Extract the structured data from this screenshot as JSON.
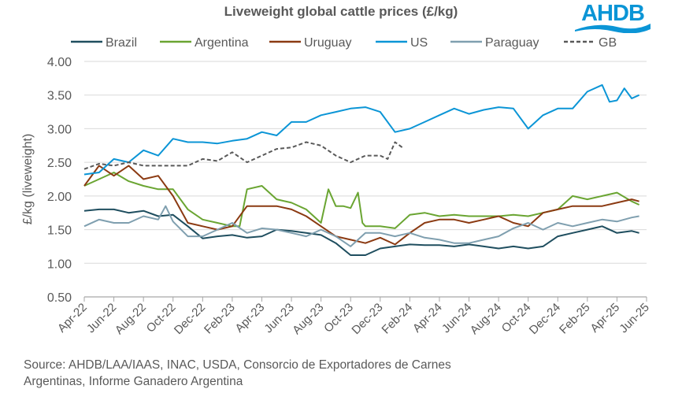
{
  "chart_data": {
    "type": "line",
    "title": "Liveweight global cattle prices (£/kg)",
    "ylabel": "£/kg (liveweight)",
    "xlabel": "",
    "ylim": [
      0.5,
      4.0
    ],
    "yticks": [
      "0.50",
      "1.00",
      "1.50",
      "2.00",
      "2.50",
      "3.00",
      "3.50",
      "4.00"
    ],
    "x_unit": "months since Apr-22",
    "xlim": [
      0,
      38
    ],
    "xticks": [
      "Apr-22",
      "Jun-22",
      "Aug-22",
      "Oct-22",
      "Dec-22",
      "Feb-23",
      "Apr-23",
      "Jun-23",
      "Aug-23",
      "Oct-23",
      "Dec-23",
      "Feb-24",
      "Apr-24",
      "Jun-24",
      "Aug-24",
      "Oct-24",
      "Dec-24",
      "Feb-25",
      "Apr-25",
      "Jun-25"
    ],
    "grid": true,
    "legend": "top",
    "series": [
      {
        "name": "Brazil",
        "color": "#1f4e5f",
        "dash": false,
        "x": [
          0,
          1,
          2,
          3,
          4,
          5,
          6,
          7,
          8,
          9,
          10,
          11,
          12,
          13,
          14,
          15,
          16,
          17,
          18,
          19,
          20,
          21,
          22,
          23,
          24,
          25,
          26,
          27,
          28,
          29,
          30,
          31,
          32,
          33,
          34,
          35,
          36,
          37,
          37.5
        ],
        "y": [
          1.78,
          1.8,
          1.8,
          1.75,
          1.78,
          1.7,
          1.72,
          1.55,
          1.37,
          1.4,
          1.42,
          1.38,
          1.4,
          1.5,
          1.48,
          1.45,
          1.42,
          1.3,
          1.12,
          1.12,
          1.22,
          1.25,
          1.28,
          1.27,
          1.27,
          1.25,
          1.28,
          1.25,
          1.22,
          1.25,
          1.22,
          1.25,
          1.4,
          1.45,
          1.5,
          1.55,
          1.45,
          1.48,
          1.45
        ]
      },
      {
        "name": "Argentina",
        "color": "#6aa532",
        "dash": false,
        "x": [
          0,
          1,
          2,
          3,
          4,
          5,
          6,
          7,
          8,
          9,
          10,
          10.5,
          11,
          12,
          13,
          14,
          15,
          16,
          16.5,
          17,
          17.5,
          18,
          18.5,
          18.8,
          19,
          20,
          21,
          22,
          23,
          24,
          25,
          26,
          27,
          28,
          29,
          30,
          31,
          32,
          33,
          34,
          35,
          36,
          37,
          37.5
        ],
        "y": [
          2.15,
          2.25,
          2.35,
          2.22,
          2.15,
          2.1,
          2.1,
          1.8,
          1.65,
          1.6,
          1.55,
          1.55,
          2.1,
          2.15,
          1.95,
          1.9,
          1.8,
          1.6,
          2.1,
          1.85,
          1.85,
          1.82,
          2.05,
          1.6,
          1.55,
          1.55,
          1.52,
          1.72,
          1.75,
          1.7,
          1.72,
          1.7,
          1.7,
          1.7,
          1.72,
          1.7,
          1.75,
          1.8,
          2.0,
          1.95,
          2.0,
          2.05,
          1.92,
          1.87
        ]
      },
      {
        "name": "Uruguay",
        "color": "#8b3a12",
        "dash": false,
        "x": [
          0,
          1,
          2,
          3,
          4,
          5,
          6,
          7,
          8,
          9,
          10,
          11,
          12,
          13,
          14,
          15,
          16,
          17,
          18,
          19,
          20,
          21,
          22,
          23,
          24,
          25,
          26,
          27,
          28,
          29,
          30,
          31,
          32,
          33,
          34,
          35,
          36,
          37,
          37.5
        ],
        "y": [
          2.15,
          2.45,
          2.3,
          2.45,
          2.25,
          2.3,
          2.0,
          1.6,
          1.55,
          1.5,
          1.55,
          1.85,
          1.85,
          1.85,
          1.8,
          1.7,
          1.55,
          1.4,
          1.35,
          1.3,
          1.38,
          1.28,
          1.45,
          1.6,
          1.65,
          1.65,
          1.6,
          1.65,
          1.7,
          1.6,
          1.55,
          1.75,
          1.8,
          1.85,
          1.85,
          1.85,
          1.9,
          1.95,
          1.92
        ]
      },
      {
        "name": "US",
        "color": "#0b95d6",
        "dash": false,
        "x": [
          0,
          1,
          2,
          3,
          4,
          5,
          6,
          7,
          8,
          9,
          10,
          11,
          12,
          13,
          14,
          15,
          16,
          17,
          18,
          19,
          20,
          21,
          22,
          23,
          24,
          25,
          26,
          27,
          28,
          29,
          30,
          31,
          32,
          33,
          34,
          35,
          35.5,
          36,
          36.5,
          37,
          37.5
        ],
        "y": [
          2.32,
          2.35,
          2.55,
          2.5,
          2.68,
          2.6,
          2.85,
          2.8,
          2.8,
          2.78,
          2.82,
          2.85,
          2.95,
          2.9,
          3.1,
          3.1,
          3.2,
          3.25,
          3.3,
          3.32,
          3.25,
          2.95,
          3.0,
          3.1,
          3.2,
          3.3,
          3.22,
          3.28,
          3.32,
          3.3,
          3.0,
          3.2,
          3.3,
          3.3,
          3.55,
          3.65,
          3.4,
          3.42,
          3.6,
          3.45,
          3.5
        ]
      },
      {
        "name": "Paraguay",
        "color": "#7f9faf",
        "dash": false,
        "x": [
          0,
          1,
          2,
          3,
          4,
          5,
          5.5,
          6,
          7,
          8,
          9,
          10,
          11,
          12,
          13,
          14,
          15,
          16,
          17,
          18,
          19,
          20,
          21,
          22,
          23,
          24,
          25,
          26,
          27,
          28,
          29,
          30,
          31,
          32,
          33,
          34,
          35,
          36,
          37,
          37.5
        ],
        "y": [
          1.55,
          1.65,
          1.6,
          1.6,
          1.7,
          1.65,
          1.85,
          1.62,
          1.4,
          1.4,
          1.5,
          1.6,
          1.45,
          1.52,
          1.5,
          1.45,
          1.4,
          1.5,
          1.4,
          1.25,
          1.45,
          1.45,
          1.4,
          1.45,
          1.38,
          1.35,
          1.3,
          1.3,
          1.35,
          1.4,
          1.52,
          1.6,
          1.5,
          1.6,
          1.55,
          1.6,
          1.65,
          1.62,
          1.68,
          1.7
        ]
      },
      {
        "name": "GB",
        "color": "#595959",
        "dash": true,
        "x": [
          0,
          1,
          2,
          3,
          4,
          5,
          6,
          7,
          8,
          9,
          10,
          11,
          12,
          13,
          14,
          15,
          16,
          17,
          18,
          19,
          20,
          20.5,
          21,
          21.5
        ],
        "y": [
          2.4,
          2.48,
          2.45,
          2.5,
          2.45,
          2.45,
          2.45,
          2.45,
          2.55,
          2.52,
          2.65,
          2.5,
          2.6,
          2.7,
          2.72,
          2.8,
          2.75,
          2.6,
          2.5,
          2.6,
          2.6,
          2.55,
          2.8,
          2.72
        ]
      }
    ],
    "source": "Source: AHDB/LAA/IAAS, INAC, USDA, Consorcio de Exportadores de Carnes Argentinas, Informe Ganadero Argentina"
  },
  "logo": {
    "text": "AHDB",
    "color": "#0b95d6"
  },
  "source_lines": [
    "Source: AHDB/LAA/IAAS, INAC, USDA, Consorcio de Exportadores de Carnes",
    "Argentinas, Informe Ganadero Argentina"
  ]
}
